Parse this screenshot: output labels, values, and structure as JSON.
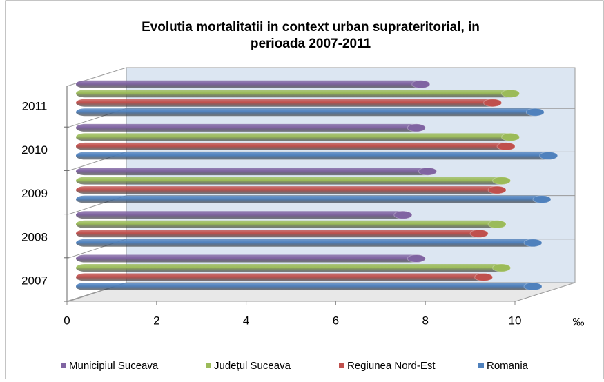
{
  "chart_data": {
    "type": "bar",
    "orientation": "horizontal",
    "title": "Evolutia mortalitatii in context urban suprateritorial, in perioada 2007-2011",
    "x_axis_label": "‰",
    "categories": [
      "2007",
      "2008",
      "2009",
      "2010",
      "2011"
    ],
    "series": [
      {
        "name": "Municipiul Suceava",
        "color": "#8064a2",
        "values": [
          7.4,
          7.1,
          7.65,
          7.4,
          7.5
        ]
      },
      {
        "name": "Județul Suceava",
        "color": "#9bbb59",
        "values": [
          9.3,
          9.2,
          9.3,
          9.5,
          9.5
        ]
      },
      {
        "name": "Regiunea Nord-Est",
        "color": "#c0504d",
        "values": [
          8.9,
          8.8,
          9.2,
          9.4,
          9.1
        ]
      },
      {
        "name": "Romania",
        "color": "#4f81bd",
        "values": [
          10.0,
          10.0,
          10.2,
          10.35,
          10.05
        ]
      }
    ],
    "xlim": [
      0,
      10
    ],
    "xticks": [
      0,
      2,
      4,
      6,
      8,
      10
    ],
    "legend": "bottom"
  }
}
